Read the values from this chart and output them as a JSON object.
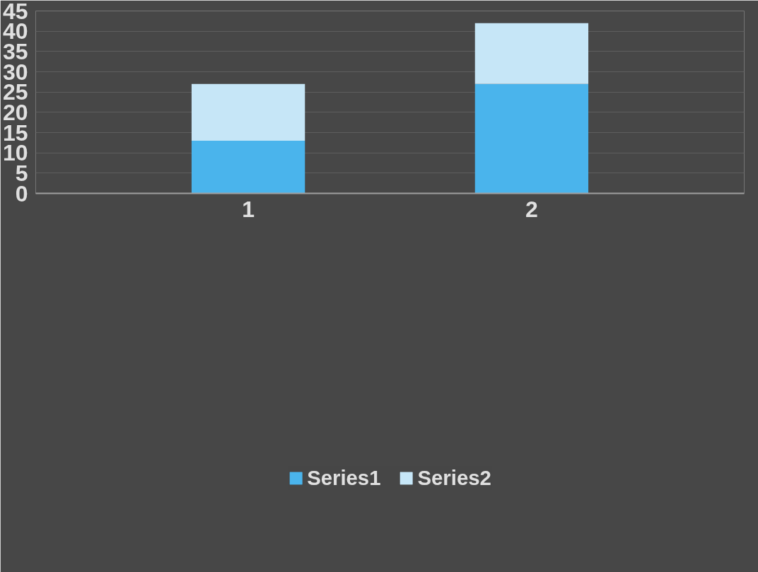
{
  "chart_data": {
    "type": "bar",
    "stacked": true,
    "categories": [
      "1",
      "2"
    ],
    "series": [
      {
        "name": "Series1",
        "color": "#4ab4ec",
        "values": [
          13,
          27
        ]
      },
      {
        "name": "Series2",
        "color": "#c6e6f7",
        "values": [
          14,
          15
        ]
      }
    ],
    "ylim": [
      0,
      45
    ],
    "yticks": [
      0,
      5,
      10,
      15,
      20,
      25,
      30,
      35,
      40,
      45
    ],
    "grid": "y",
    "legend": "bottom"
  }
}
